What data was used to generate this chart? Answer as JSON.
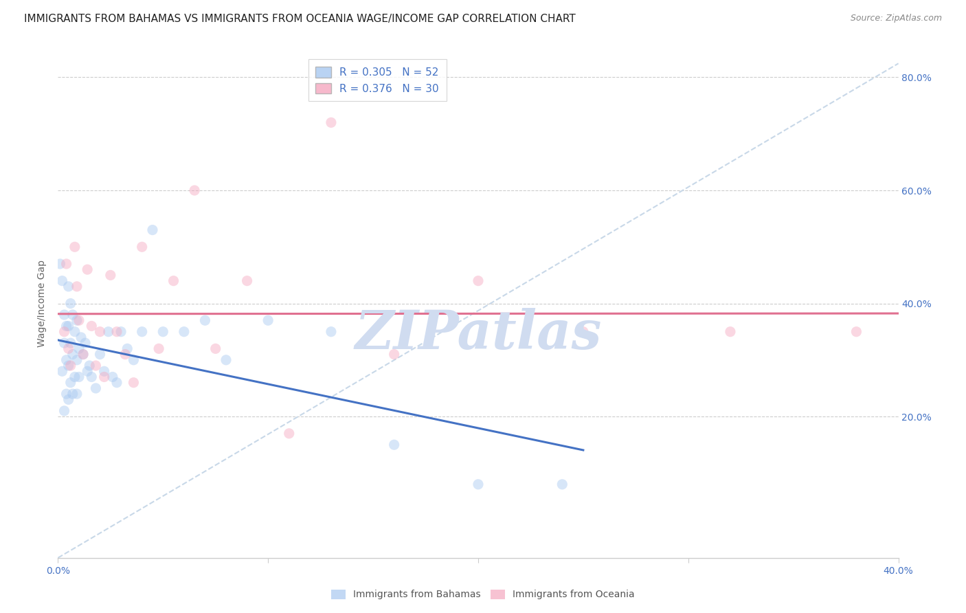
{
  "title": "IMMIGRANTS FROM BAHAMAS VS IMMIGRANTS FROM OCEANIA WAGE/INCOME GAP CORRELATION CHART",
  "source": "Source: ZipAtlas.com",
  "ylabel": "Wage/Income Gap",
  "xlim": [
    0.0,
    0.4
  ],
  "ylim": [
    -0.05,
    0.85
  ],
  "ytick_positions": [
    0.2,
    0.4,
    0.6,
    0.8
  ],
  "ytick_labels": [
    "20.0%",
    "40.0%",
    "60.0%",
    "80.0%"
  ],
  "bahamas_x": [
    0.001,
    0.002,
    0.002,
    0.003,
    0.003,
    0.003,
    0.004,
    0.004,
    0.004,
    0.005,
    0.005,
    0.005,
    0.005,
    0.006,
    0.006,
    0.006,
    0.007,
    0.007,
    0.007,
    0.008,
    0.008,
    0.009,
    0.009,
    0.009,
    0.01,
    0.01,
    0.011,
    0.012,
    0.013,
    0.014,
    0.015,
    0.016,
    0.018,
    0.02,
    0.022,
    0.024,
    0.026,
    0.028,
    0.03,
    0.033,
    0.036,
    0.04,
    0.045,
    0.05,
    0.06,
    0.07,
    0.08,
    0.1,
    0.13,
    0.16,
    0.2,
    0.24
  ],
  "bahamas_y": [
    0.47,
    0.44,
    0.28,
    0.38,
    0.33,
    0.21,
    0.36,
    0.3,
    0.24,
    0.43,
    0.36,
    0.29,
    0.23,
    0.4,
    0.33,
    0.26,
    0.38,
    0.31,
    0.24,
    0.35,
    0.27,
    0.37,
    0.3,
    0.24,
    0.32,
    0.27,
    0.34,
    0.31,
    0.33,
    0.28,
    0.29,
    0.27,
    0.25,
    0.31,
    0.28,
    0.35,
    0.27,
    0.26,
    0.35,
    0.32,
    0.3,
    0.35,
    0.53,
    0.35,
    0.35,
    0.37,
    0.3,
    0.37,
    0.35,
    0.15,
    0.08,
    0.08
  ],
  "oceania_x": [
    0.003,
    0.004,
    0.005,
    0.006,
    0.008,
    0.009,
    0.01,
    0.012,
    0.014,
    0.016,
    0.018,
    0.02,
    0.022,
    0.025,
    0.028,
    0.032,
    0.036,
    0.04,
    0.048,
    0.055,
    0.065,
    0.075,
    0.09,
    0.11,
    0.13,
    0.16,
    0.2,
    0.25,
    0.32,
    0.38
  ],
  "oceania_y": [
    0.35,
    0.47,
    0.32,
    0.29,
    0.5,
    0.43,
    0.37,
    0.31,
    0.46,
    0.36,
    0.29,
    0.35,
    0.27,
    0.45,
    0.35,
    0.31,
    0.26,
    0.5,
    0.32,
    0.44,
    0.6,
    0.32,
    0.44,
    0.17,
    0.72,
    0.31,
    0.44,
    0.35,
    0.35,
    0.35
  ],
  "bahamas_color": "#a8c8f0",
  "oceania_color": "#f5a8c0",
  "bahamas_line_color": "#4472c4",
  "oceania_line_color": "#e07090",
  "ref_line_color": "#c8d8e8",
  "watermark_color": "#d0dcf0",
  "background_color": "#ffffff",
  "title_fontsize": 11,
  "source_fontsize": 9,
  "axis_label_fontsize": 10,
  "tick_fontsize": 10,
  "legend_fontsize": 11,
  "marker_size": 120,
  "marker_alpha": 0.45,
  "tick_color": "#4472c4",
  "grid_color": "#cccccc",
  "label_color": "#555555"
}
